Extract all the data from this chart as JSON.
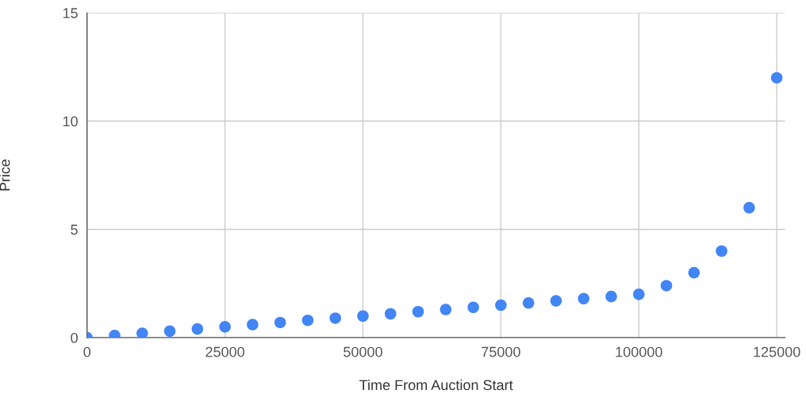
{
  "chart_data": {
    "type": "scatter",
    "xlabel": "Time From Auction Start",
    "ylabel": "Price",
    "x": [
      0,
      5000,
      10000,
      15000,
      20000,
      25000,
      30000,
      35000,
      40000,
      45000,
      50000,
      55000,
      60000,
      65000,
      70000,
      75000,
      80000,
      85000,
      90000,
      95000,
      100000,
      105000,
      110000,
      115000,
      120000,
      125000
    ],
    "series": [
      {
        "color": "#4285f4",
        "values": [
          0,
          0.1,
          0.2,
          0.3,
          0.4,
          0.5,
          0.6,
          0.7,
          0.8,
          0.9,
          1.0,
          1.1,
          1.2,
          1.3,
          1.4,
          1.5,
          1.6,
          1.7,
          1.8,
          1.9,
          2.0,
          2.4,
          3.0,
          4.0,
          6.0,
          12.0
        ]
      }
    ],
    "xlim": [
      0,
      126500
    ],
    "xticks": [
      0,
      25000,
      50000,
      75000,
      100000,
      125000
    ],
    "ylim": [
      0,
      15
    ],
    "yticks": [
      0,
      5,
      10,
      15
    ],
    "grid": true,
    "marker": "circle",
    "legend": false
  }
}
